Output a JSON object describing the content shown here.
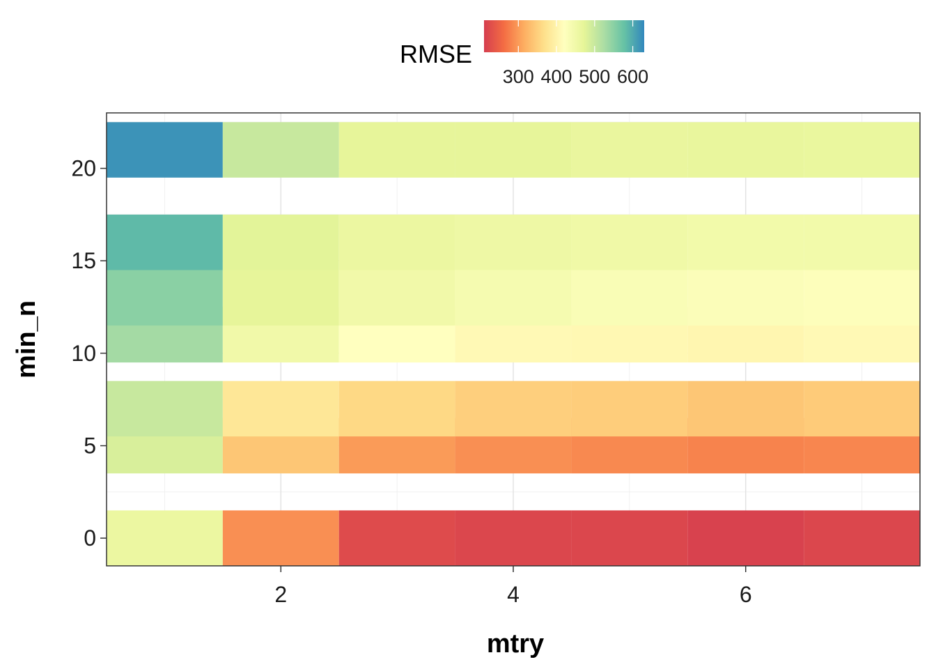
{
  "chart_data": {
    "type": "heatmap",
    "title": "",
    "xlabel": "mtry",
    "ylabel": "min_n",
    "x": [
      1,
      2,
      3,
      4,
      5,
      6,
      7
    ],
    "y": [
      0,
      5,
      7,
      11,
      13,
      16,
      21
    ],
    "xticks": [
      2,
      4,
      6
    ],
    "yticks": [
      0,
      5,
      10,
      15,
      20
    ],
    "xlim": [
      0.5,
      7.5
    ],
    "ylim": [
      -1.5,
      23
    ],
    "grid": true,
    "legend": {
      "title": "RMSE",
      "position": "top",
      "range": [
        210,
        630
      ],
      "ticks": [
        300,
        400,
        500,
        600
      ],
      "colors": [
        "#d53e4f",
        "#f46d43",
        "#fdae61",
        "#fee08b",
        "#ffffbf",
        "#e6f598",
        "#abdda4",
        "#66c2a5",
        "#3288bd"
      ]
    },
    "values": [
      [
        460,
        290,
        225,
        220,
        220,
        215,
        220
      ],
      [
        485,
        340,
        300,
        290,
        285,
        280,
        283
      ],
      [
        500,
        380,
        360,
        350,
        348,
        340,
        345
      ],
      [
        530,
        450,
        420,
        410,
        408,
        405,
        410
      ],
      [
        550,
        470,
        450,
        440,
        432,
        428,
        425
      ],
      [
        585,
        475,
        460,
        455,
        452,
        448,
        448
      ],
      [
        620,
        500,
        470,
        470,
        465,
        466,
        464
      ]
    ]
  }
}
